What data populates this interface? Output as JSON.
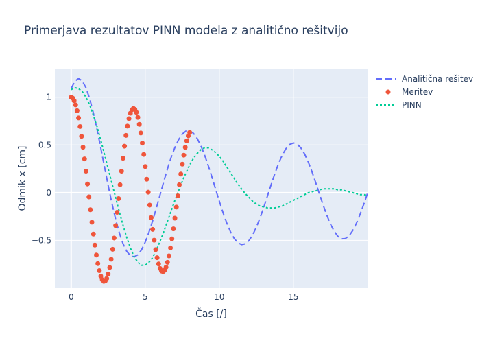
{
  "chart_data": {
    "type": "line",
    "title": "Primerjava rezultatov PINN modela z analitično rešitvijo",
    "xlabel": "Čas [/]",
    "ylabel": "Odmik x [cm]",
    "xlim": [
      -1.1,
      20
    ],
    "ylim": [
      -1.0,
      1.3
    ],
    "xticks": [
      0,
      5,
      10,
      15
    ],
    "xtick_labels": [
      "0",
      "5",
      "10",
      "15"
    ],
    "yticks": [
      -0.5,
      0,
      0.5,
      1
    ],
    "ytick_labels": [
      "−0.5",
      "0",
      "0.5",
      "1"
    ],
    "grid": true,
    "legend_position": "top-right",
    "series": [
      {
        "name": "Analitična rešitev",
        "mode": "line-dashed",
        "color": "#636efa",
        "x": [
          0,
          0.25,
          0.5,
          0.75,
          1.0,
          1.25,
          1.5,
          1.75,
          2.0,
          2.25,
          2.5,
          2.75,
          3.0,
          3.25,
          3.5,
          3.75,
          4.0,
          4.25,
          4.5,
          4.75,
          5.0,
          5.25,
          5.5,
          5.75,
          6.0,
          6.25,
          6.5,
          6.75,
          7.0,
          7.25,
          7.5,
          7.75,
          8.0,
          8.25,
          8.5,
          8.75,
          9.0,
          9.25,
          9.5,
          9.75,
          10.0,
          10.25,
          10.5,
          10.75,
          11.0,
          11.25,
          11.5,
          11.75,
          12.0,
          12.25,
          12.5,
          12.75,
          13.0,
          13.25,
          13.5,
          13.75,
          14.0,
          14.25,
          14.5,
          14.75,
          15.0,
          15.25,
          15.5,
          15.75,
          16.0,
          16.25,
          16.5,
          16.75,
          17.0,
          17.25,
          17.5,
          17.75,
          18.0,
          18.25,
          18.5,
          18.75,
          19.0,
          19.25,
          19.5,
          19.75,
          20.0
        ],
        "y": [
          1.09,
          1.169,
          1.196,
          1.171,
          1.099,
          0.984,
          0.834,
          0.659,
          0.468,
          0.27,
          0.074,
          -0.111,
          -0.278,
          -0.421,
          -0.534,
          -0.614,
          -0.661,
          -0.672,
          -0.651,
          -0.598,
          -0.518,
          -0.415,
          -0.294,
          -0.162,
          -0.023,
          0.116,
          0.249,
          0.37,
          0.474,
          0.557,
          0.615,
          0.646,
          0.648,
          0.622,
          0.569,
          0.492,
          0.396,
          0.284,
          0.162,
          0.035,
          -0.091,
          -0.211,
          -0.318,
          -0.409,
          -0.479,
          -0.524,
          -0.544,
          -0.536,
          -0.501,
          -0.442,
          -0.361,
          -0.263,
          -0.152,
          -0.034,
          0.087,
          0.202,
          0.307,
          0.395,
          0.462,
          0.505,
          0.521,
          0.509,
          0.47,
          0.406,
          0.321,
          0.219,
          0.106,
          -0.012,
          -0.128,
          -0.235,
          -0.33,
          -0.405,
          -0.457,
          -0.483,
          -0.481,
          -0.452,
          -0.397,
          -0.32,
          -0.226,
          -0.119,
          -0.006
        ]
      },
      {
        "name": "Meritev",
        "mode": "markers",
        "color": "#ef553b",
        "x": [
          0,
          0.1,
          0.2,
          0.3,
          0.4,
          0.5,
          0.6,
          0.7,
          0.8,
          0.9,
          1.0,
          1.1,
          1.2,
          1.3,
          1.4,
          1.5,
          1.6,
          1.7,
          1.8,
          1.9,
          2.0,
          2.1,
          2.2,
          2.3,
          2.4,
          2.5,
          2.6,
          2.7,
          2.8,
          2.9,
          3.0,
          3.1,
          3.2,
          3.3,
          3.4,
          3.5,
          3.6,
          3.7,
          3.8,
          3.9,
          4.0,
          4.1,
          4.2,
          4.3,
          4.4,
          4.5,
          4.6,
          4.7,
          4.8,
          4.9,
          5.0,
          5.1,
          5.2,
          5.3,
          5.4,
          5.5,
          5.6,
          5.7,
          5.8,
          5.9,
          6.0,
          6.1,
          6.2,
          6.3,
          6.4,
          6.5,
          6.6,
          6.7,
          6.8,
          6.9,
          7.0,
          7.1,
          7.2,
          7.3,
          7.4,
          7.5,
          7.6,
          7.7,
          7.8,
          7.9,
          8.0
        ],
        "y": [
          1.0,
          0.991,
          0.964,
          0.92,
          0.859,
          0.783,
          0.693,
          0.59,
          0.476,
          0.354,
          0.225,
          0.091,
          -0.044,
          -0.179,
          -0.309,
          -0.434,
          -0.549,
          -0.653,
          -0.743,
          -0.817,
          -0.874,
          -0.912,
          -0.929,
          -0.925,
          -0.899,
          -0.852,
          -0.784,
          -0.697,
          -0.593,
          -0.475,
          -0.345,
          -0.206,
          -0.062,
          0.083,
          0.225,
          0.361,
          0.487,
          0.6,
          0.697,
          0.775,
          0.833,
          0.869,
          0.883,
          0.873,
          0.842,
          0.789,
          0.716,
          0.625,
          0.519,
          0.401,
          0.274,
          0.141,
          0.005,
          -0.13,
          -0.261,
          -0.385,
          -0.498,
          -0.597,
          -0.681,
          -0.747,
          -0.794,
          -0.821,
          -0.828,
          -0.814,
          -0.781,
          -0.73,
          -0.662,
          -0.579,
          -0.484,
          -0.379,
          -0.267,
          -0.151,
          -0.033,
          0.083,
          0.195,
          0.299,
          0.393,
          0.475,
          0.543,
          0.595,
          0.631
        ]
      },
      {
        "name": "PINN",
        "mode": "line-dotted",
        "color": "#00cc96",
        "x": [
          0,
          0.25,
          0.5,
          0.75,
          1.0,
          1.25,
          1.5,
          1.75,
          2.0,
          2.25,
          2.5,
          2.75,
          3.0,
          3.25,
          3.5,
          3.75,
          4.0,
          4.25,
          4.5,
          4.75,
          5.0,
          5.25,
          5.5,
          5.75,
          6.0,
          6.25,
          6.5,
          6.75,
          7.0,
          7.25,
          7.5,
          7.75,
          8.0,
          8.25,
          8.5,
          8.75,
          9.0,
          9.25,
          9.5,
          9.75,
          10.0,
          10.25,
          10.5,
          10.75,
          11.0,
          11.25,
          11.5,
          11.75,
          12.0,
          12.25,
          12.5,
          12.75,
          13.0,
          13.25,
          13.5,
          13.75,
          14.0,
          14.25,
          14.5,
          14.75,
          15.0,
          15.25,
          15.5,
          15.75,
          16.0,
          16.25,
          16.5,
          16.75,
          17.0,
          17.25,
          17.5,
          17.75,
          18.0,
          18.25,
          18.5,
          18.75,
          19.0,
          19.25,
          19.5,
          19.75,
          20.0
        ],
        "y": [
          1.08,
          1.1,
          1.09,
          1.06,
          1.0,
          0.92,
          0.81,
          0.69,
          0.55,
          0.4,
          0.25,
          0.1,
          -0.05,
          -0.2,
          -0.34,
          -0.47,
          -0.58,
          -0.67,
          -0.73,
          -0.76,
          -0.76,
          -0.73,
          -0.68,
          -0.6,
          -0.51,
          -0.41,
          -0.3,
          -0.19,
          -0.08,
          0.02,
          0.12,
          0.21,
          0.29,
          0.36,
          0.41,
          0.45,
          0.47,
          0.47,
          0.45,
          0.42,
          0.38,
          0.33,
          0.27,
          0.21,
          0.15,
          0.09,
          0.04,
          -0.01,
          -0.05,
          -0.09,
          -0.12,
          -0.14,
          -0.15,
          -0.16,
          -0.16,
          -0.16,
          -0.15,
          -0.14,
          -0.12,
          -0.1,
          -0.08,
          -0.06,
          -0.04,
          -0.02,
          0.0,
          0.01,
          0.02,
          0.03,
          0.04,
          0.04,
          0.04,
          0.04,
          0.03,
          0.03,
          0.02,
          0.01,
          0.0,
          -0.01,
          -0.02,
          -0.02,
          -0.03
        ]
      }
    ]
  }
}
